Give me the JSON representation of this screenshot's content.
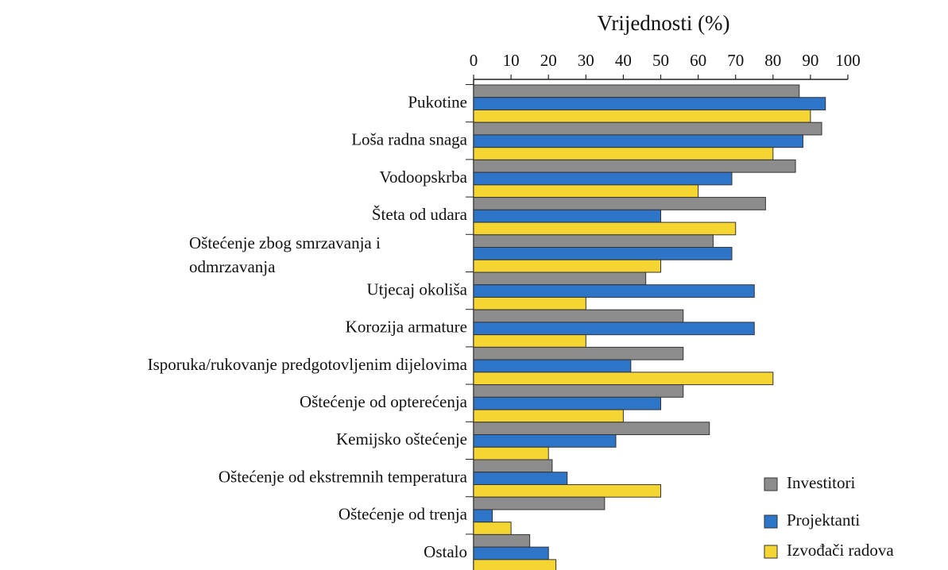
{
  "chart_data": {
    "type": "bar",
    "orientation": "horizontal",
    "title": "Vrijednosti (%)",
    "categories": [
      "Pukotine",
      "Loša radna snaga",
      "Vodoopskrba",
      "Šteta od udara",
      "Oštećenje zbog smrzavanja i odmrzavanja",
      "Utjecaj okoliša",
      "Korozija armature",
      "Isporuka/rukovanje predgotovljenim dijelovima",
      "Oštećenje od opterećenja",
      "Kemijsko oštećenje",
      "Oštećenje od ekstremnih temperatura",
      "Oštećenje od trenja",
      "Ostalo"
    ],
    "series": [
      {
        "name": "Investitori",
        "color": "#8c8c8c",
        "values": [
          87,
          93,
          86,
          78,
          64,
          46,
          56,
          56,
          56,
          63,
          21,
          35,
          15
        ]
      },
      {
        "name": "Projektanti",
        "color": "#2e75c8",
        "values": [
          94,
          88,
          69,
          50,
          69,
          75,
          75,
          42,
          50,
          38,
          25,
          5,
          20
        ]
      },
      {
        "name": "Izvođači radova",
        "color": "#f5d532",
        "values": [
          90,
          80,
          60,
          70,
          50,
          30,
          30,
          80,
          40,
          20,
          50,
          10,
          22
        ]
      }
    ],
    "xlim": [
      0,
      100
    ],
    "xticks": [
      0,
      10,
      20,
      30,
      40,
      50,
      60,
      70,
      80,
      90,
      100
    ],
    "legend": "lower right"
  }
}
